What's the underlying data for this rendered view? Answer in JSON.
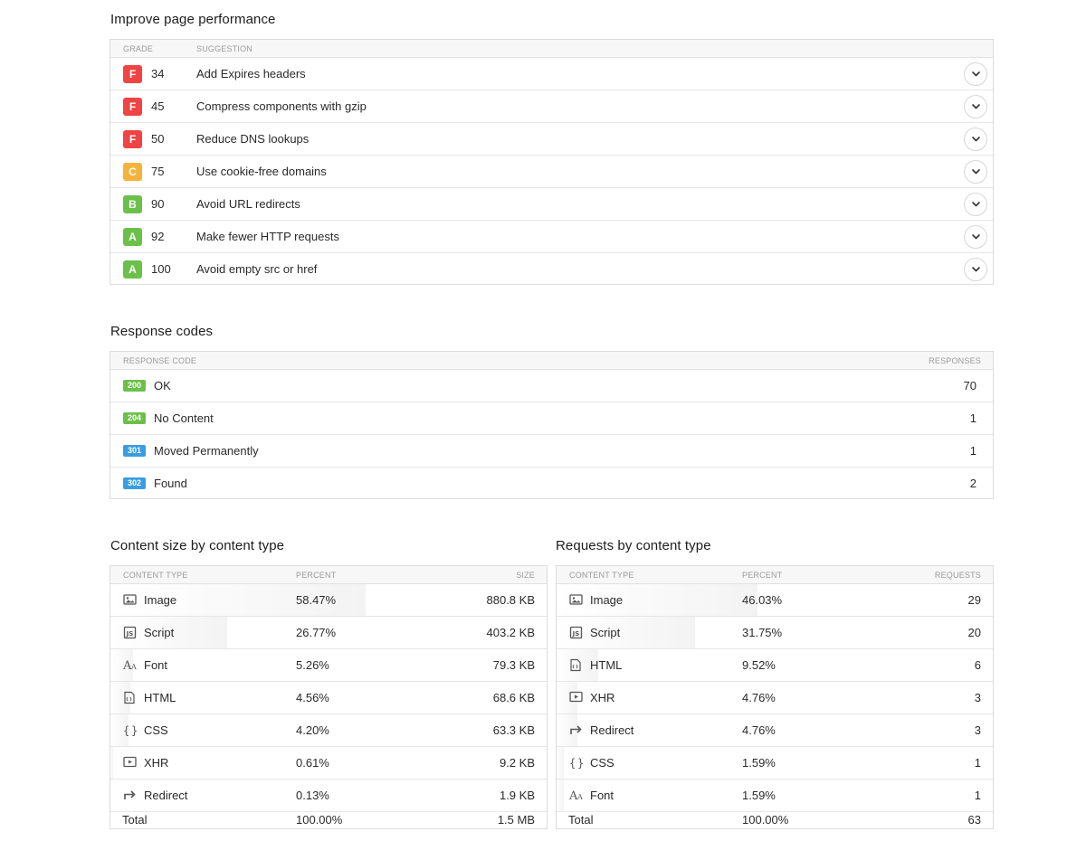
{
  "performance": {
    "title": "Improve page performance",
    "col_grade": "GRADE",
    "col_suggestion": "SUGGESTION",
    "items": [
      {
        "grade": "F",
        "score": "34",
        "text": "Add Expires headers",
        "color": "#ef4444"
      },
      {
        "grade": "F",
        "score": "45",
        "text": "Compress components with gzip",
        "color": "#ef4444"
      },
      {
        "grade": "F",
        "score": "50",
        "text": "Reduce DNS lookups",
        "color": "#ef4444"
      },
      {
        "grade": "C",
        "score": "75",
        "text": "Use cookie-free domains",
        "color": "#f5b33b"
      },
      {
        "grade": "B",
        "score": "90",
        "text": "Avoid URL redirects",
        "color": "#6cc04a"
      },
      {
        "grade": "A",
        "score": "92",
        "text": "Make fewer HTTP requests",
        "color": "#6cc04a"
      },
      {
        "grade": "A",
        "score": "100",
        "text": "Avoid empty src or href",
        "color": "#6cc04a"
      }
    ]
  },
  "response_codes": {
    "title": "Response codes",
    "col_code": "RESPONSE CODE",
    "col_responses": "RESPONSES",
    "items": [
      {
        "code": "200",
        "label": "OK",
        "count": "70",
        "color": "#6cc04a"
      },
      {
        "code": "204",
        "label": "No Content",
        "count": "1",
        "color": "#6cc04a"
      },
      {
        "code": "301",
        "label": "Moved Permanently",
        "count": "1",
        "color": "#3a9de0"
      },
      {
        "code": "302",
        "label": "Found",
        "count": "2",
        "color": "#3a9de0"
      }
    ]
  },
  "content_size": {
    "title": "Content size by content type",
    "col_type": "CONTENT TYPE",
    "col_percent": "PERCENT",
    "col_value": "SIZE",
    "items": [
      {
        "icon": "image-icon",
        "name": "Image",
        "percent": "58.47%",
        "fraction": 0.5847,
        "value": "880.8 KB"
      },
      {
        "icon": "script-icon",
        "name": "Script",
        "percent": "26.77%",
        "fraction": 0.2677,
        "value": "403.2 KB"
      },
      {
        "icon": "font-icon",
        "name": "Font",
        "percent": "5.26%",
        "fraction": 0.0526,
        "value": "79.3 KB"
      },
      {
        "icon": "html-icon",
        "name": "HTML",
        "percent": "4.56%",
        "fraction": 0.0456,
        "value": "68.6 KB"
      },
      {
        "icon": "css-icon",
        "name": "CSS",
        "percent": "4.20%",
        "fraction": 0.042,
        "value": "63.3 KB"
      },
      {
        "icon": "xhr-icon",
        "name": "XHR",
        "percent": "0.61%",
        "fraction": 0.0061,
        "value": "9.2 KB"
      },
      {
        "icon": "redirect-icon",
        "name": "Redirect",
        "percent": "0.13%",
        "fraction": 0.0013,
        "value": "1.9 KB"
      }
    ],
    "total": {
      "label": "Total",
      "percent": "100.00%",
      "value": "1.5 MB"
    }
  },
  "content_requests": {
    "title": "Requests by content type",
    "col_type": "CONTENT TYPE",
    "col_percent": "PERCENT",
    "col_value": "REQUESTS",
    "items": [
      {
        "icon": "image-icon",
        "name": "Image",
        "percent": "46.03%",
        "fraction": 0.4603,
        "value": "29"
      },
      {
        "icon": "script-icon",
        "name": "Script",
        "percent": "31.75%",
        "fraction": 0.3175,
        "value": "20"
      },
      {
        "icon": "html-icon",
        "name": "HTML",
        "percent": "9.52%",
        "fraction": 0.0952,
        "value": "6"
      },
      {
        "icon": "xhr-icon",
        "name": "XHR",
        "percent": "4.76%",
        "fraction": 0.0476,
        "value": "3"
      },
      {
        "icon": "redirect-icon",
        "name": "Redirect",
        "percent": "4.76%",
        "fraction": 0.0476,
        "value": "3"
      },
      {
        "icon": "css-icon",
        "name": "CSS",
        "percent": "1.59%",
        "fraction": 0.0159,
        "value": "1"
      },
      {
        "icon": "font-icon",
        "name": "Font",
        "percent": "1.59%",
        "fraction": 0.0159,
        "value": "1"
      }
    ],
    "total": {
      "label": "Total",
      "percent": "100.00%",
      "value": "63"
    }
  }
}
